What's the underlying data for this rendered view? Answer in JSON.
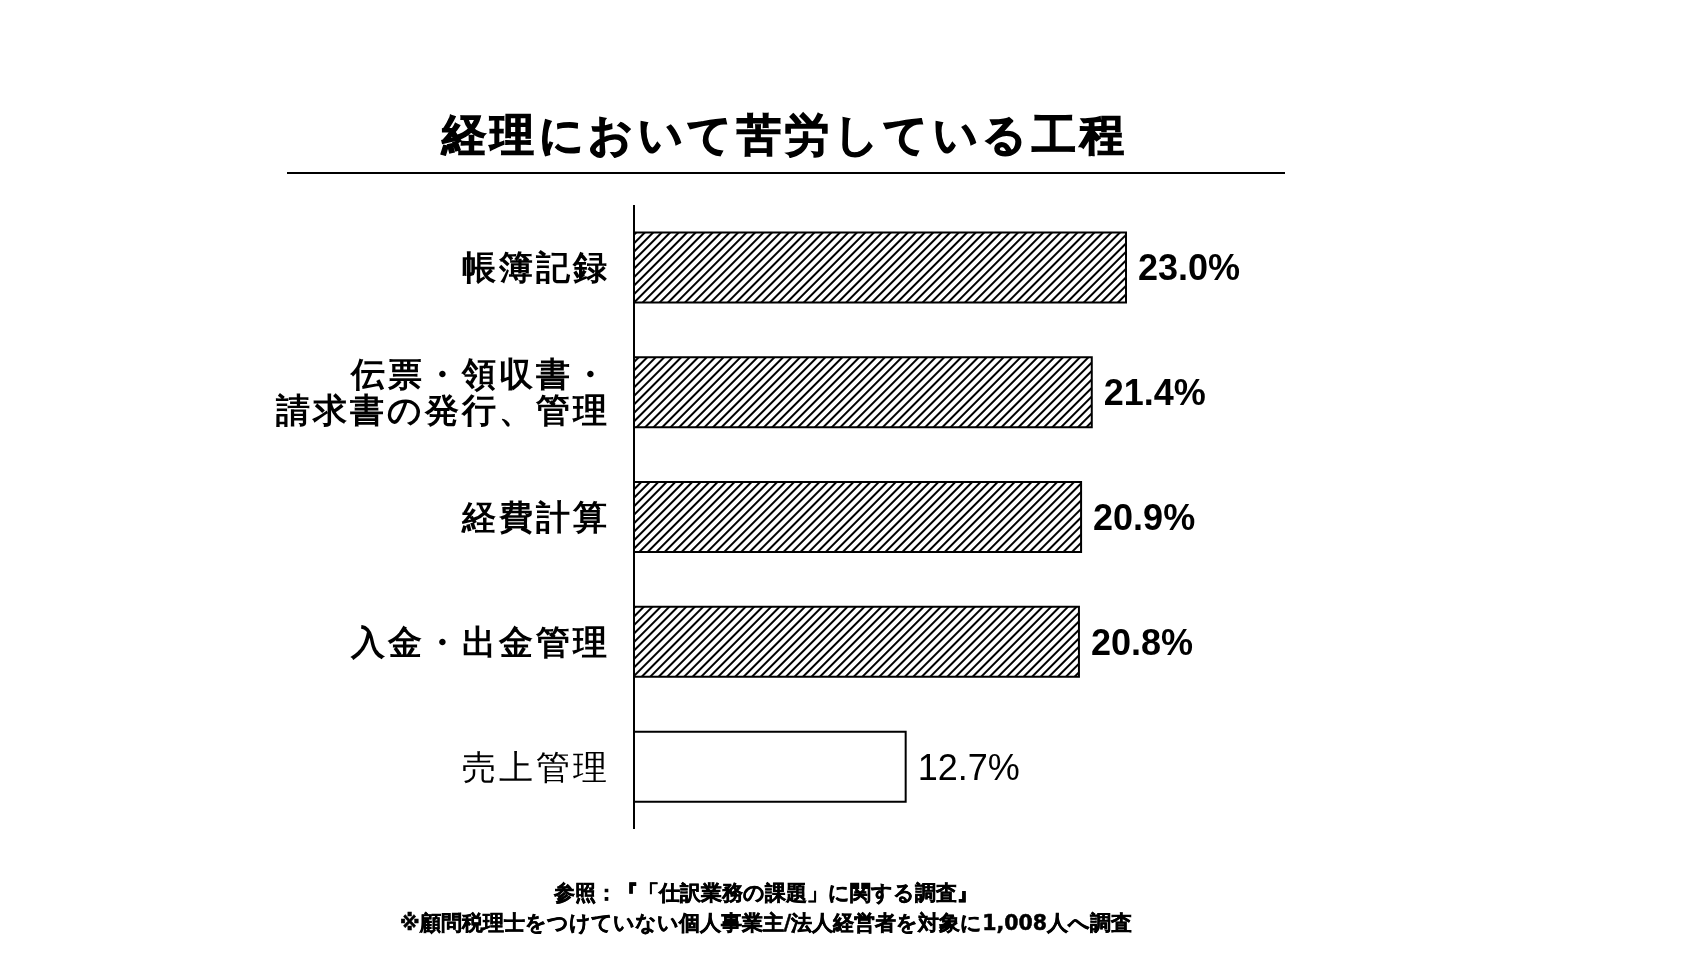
{
  "chart_data": {
    "type": "bar",
    "orientation": "horizontal",
    "title": "経理において苦労している工程",
    "categories": [
      "帳簿記録",
      "伝票・領収書・請求書の発行、管理",
      "経費計算",
      "入金・出金管理",
      "売上管理"
    ],
    "values": [
      23.0,
      21.4,
      20.9,
      20.8,
      12.7
    ],
    "colors": [
      "#000000",
      "#000000",
      "#000000",
      "#000000",
      "#ffffff"
    ],
    "value_labels": [
      "23.0%",
      "21.4%",
      "20.9%",
      "20.8%",
      "12.7%"
    ],
    "tick_labels": "y",
    "annotations": [
      "参照：『「仕訳業務の課題」に関する調査』",
      "※顧問税理士をつけていない個人事業主/法人経営者を対象に1,008人へ調査"
    ]
  }
}
